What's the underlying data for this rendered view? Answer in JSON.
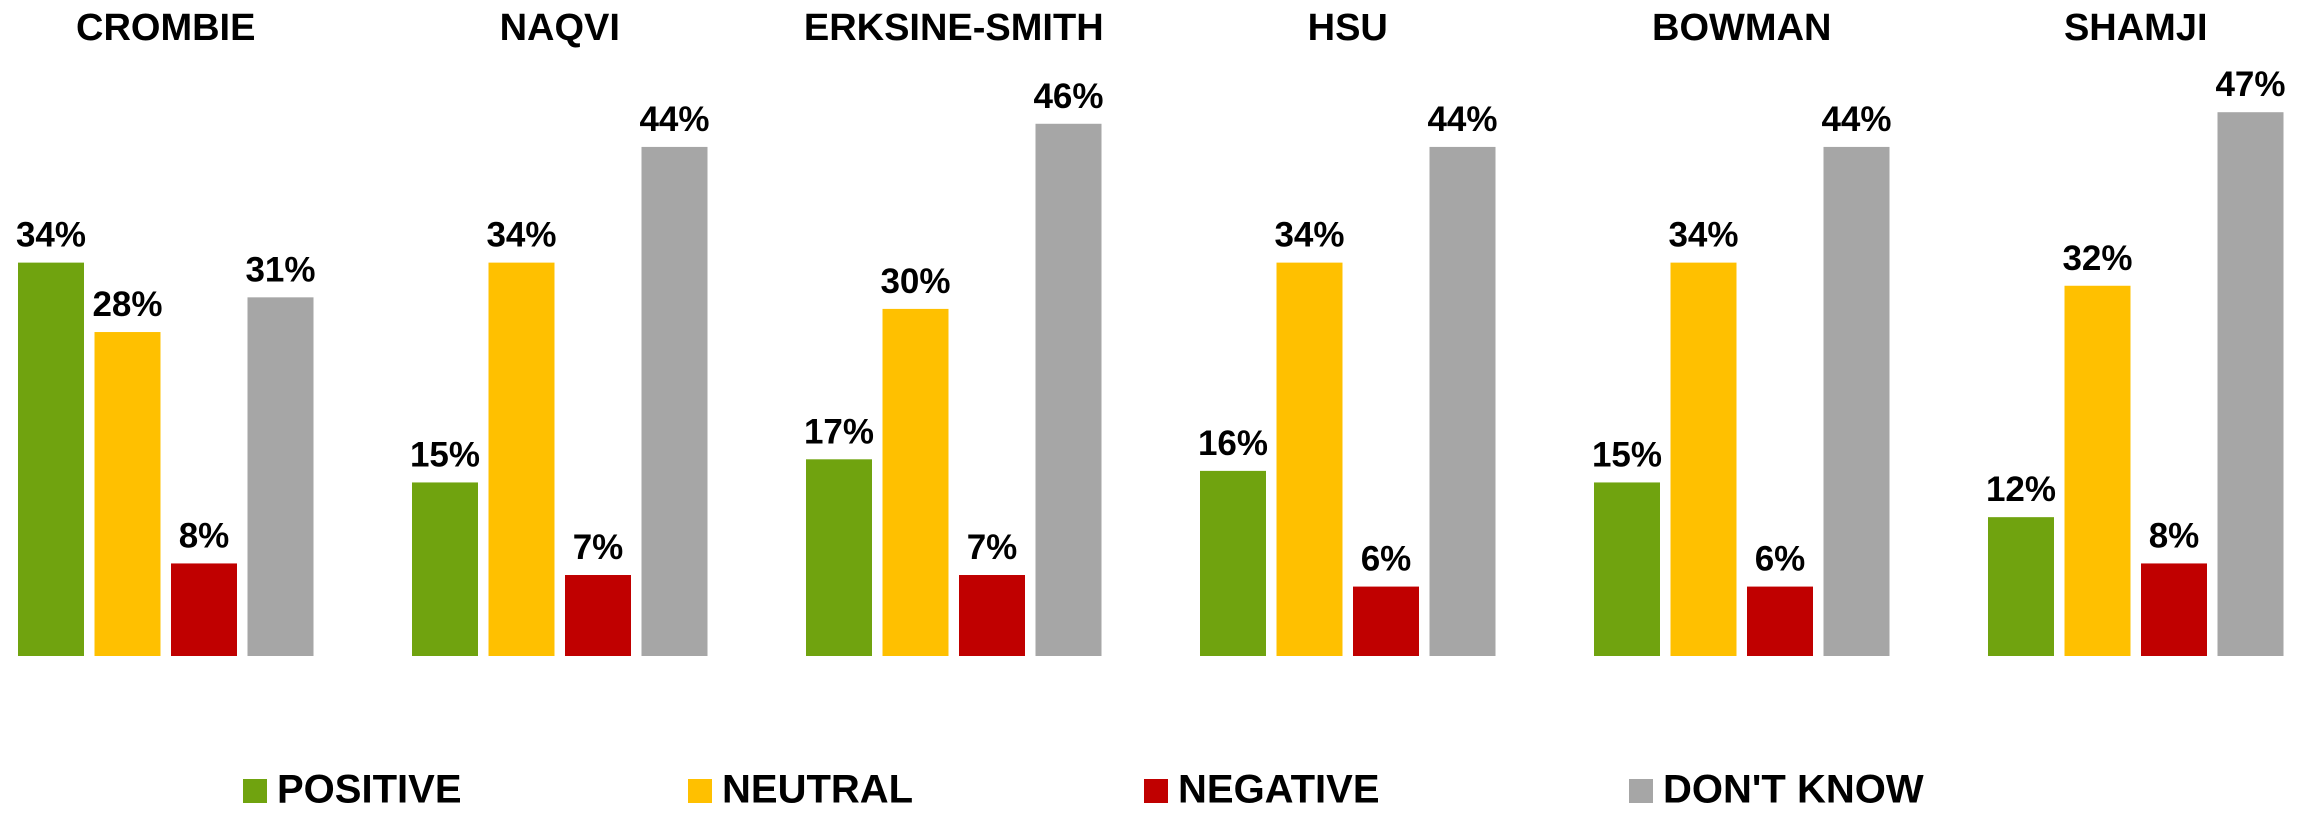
{
  "chart_data": {
    "type": "bar",
    "categories": [
      "CROMBIE",
      "NAQVI",
      "ERKSINE-SMITH",
      "HSU",
      "BOWMAN",
      "SHAMJI"
    ],
    "series": [
      {
        "name": "POSITIVE",
        "color": "#70a30f",
        "values": [
          34,
          15,
          17,
          16,
          15,
          12
        ],
        "value_labels": [
          "34%",
          "15%",
          "17%",
          "16%",
          "15%",
          "12%"
        ]
      },
      {
        "name": "NEUTRAL",
        "color": "#ffc000",
        "values": [
          28,
          34,
          30,
          34,
          34,
          32
        ],
        "value_labels": [
          "28%",
          "34%",
          "30%",
          "34%",
          "34%",
          "32%"
        ]
      },
      {
        "name": "NEGATIVE",
        "color": "#c00000",
        "values": [
          8,
          7,
          7,
          6,
          6,
          8
        ],
        "value_labels": [
          "8%",
          "7%",
          "7%",
          "6%",
          "6%",
          "8%"
        ]
      },
      {
        "name": "DON'T KNOW",
        "color": "#a6a6a6",
        "values": [
          31,
          44,
          46,
          44,
          44,
          47
        ],
        "value_labels": [
          "31%",
          "44%",
          "46%",
          "44%",
          "44%",
          "47%"
        ]
      }
    ],
    "legend": "bottom"
  }
}
